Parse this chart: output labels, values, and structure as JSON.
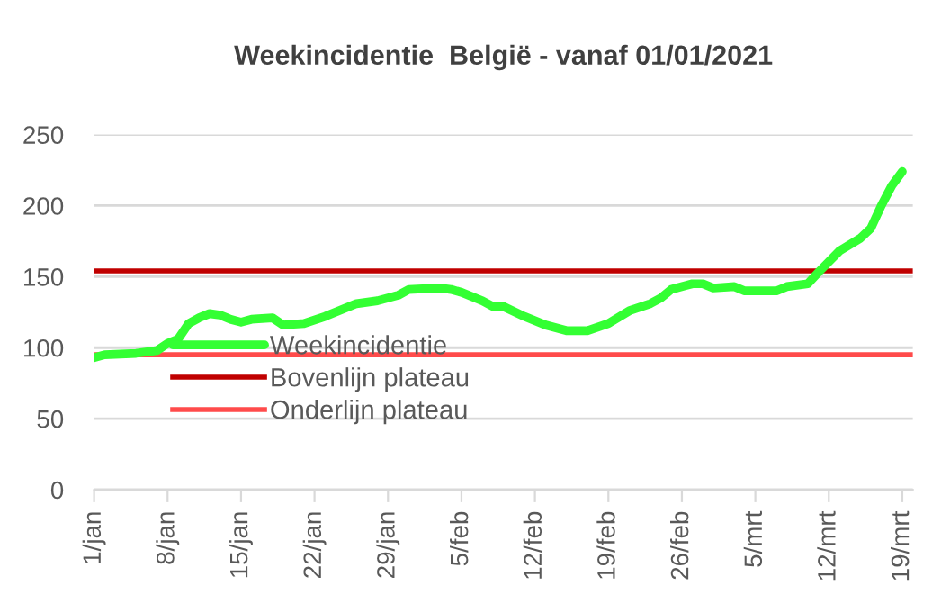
{
  "chart_data": {
    "type": "line",
    "title": "Weekincidentie  België - vanaf 01/01/2021",
    "series": [
      {
        "name": "Weekincidentie",
        "color": "#33ff33",
        "x": [
          "2021-01-01",
          "2021-01-02",
          "2021-01-05",
          "2021-01-07",
          "2021-01-08",
          "2021-01-09",
          "2021-01-10",
          "2021-01-11",
          "2021-01-12",
          "2021-01-13",
          "2021-01-14",
          "2021-01-15",
          "2021-01-16",
          "2021-01-18",
          "2021-01-19",
          "2021-01-21",
          "2021-01-23",
          "2021-01-25",
          "2021-01-26",
          "2021-01-28",
          "2021-01-30",
          "2021-01-31",
          "2021-02-03",
          "2021-02-04",
          "2021-02-05",
          "2021-02-07",
          "2021-02-08",
          "2021-02-09",
          "2021-02-11",
          "2021-02-13",
          "2021-02-15",
          "2021-02-17",
          "2021-02-19",
          "2021-02-21",
          "2021-02-23",
          "2021-02-24",
          "2021-02-25",
          "2021-02-27",
          "2021-02-28",
          "2021-03-01",
          "2021-03-03",
          "2021-03-04",
          "2021-03-07",
          "2021-03-08",
          "2021-03-10",
          "2021-03-11",
          "2021-03-13",
          "2021-03-15",
          "2021-03-16",
          "2021-03-17",
          "2021-03-18",
          "2021-03-19"
        ],
        "values": [
          93,
          95,
          96,
          98,
          103,
          106,
          117,
          121,
          124,
          123,
          120,
          118,
          120,
          121,
          116,
          117,
          122,
          128,
          131,
          133,
          137,
          141,
          142,
          141,
          139,
          133,
          129,
          129,
          122,
          116,
          112,
          112,
          117,
          126,
          131,
          135,
          141,
          145,
          145,
          142,
          143,
          140,
          140,
          143,
          145,
          153,
          168,
          177,
          184,
          200,
          214,
          224
        ]
      }
    ],
    "ref_lines": [
      {
        "axis": "y",
        "value": 154,
        "label": "Bovenlijn plateau",
        "color": "#c00000"
      },
      {
        "axis": "y",
        "value": 95,
        "label": "Onderlijn plateau",
        "color": "#ff4b4b"
      }
    ],
    "xlim": [
      "2021-01-01",
      "2021-03-20"
    ],
    "xticks": [
      {
        "value": "2021-01-01",
        "label": "1/jan"
      },
      {
        "value": "2021-01-08",
        "label": "8/jan"
      },
      {
        "value": "2021-01-15",
        "label": "15/jan"
      },
      {
        "value": "2021-01-22",
        "label": "22/jan"
      },
      {
        "value": "2021-01-29",
        "label": "29/jan"
      },
      {
        "value": "2021-02-05",
        "label": "5/feb"
      },
      {
        "value": "2021-02-12",
        "label": "12/feb"
      },
      {
        "value": "2021-02-19",
        "label": "19/feb"
      },
      {
        "value": "2021-02-26",
        "label": "26/feb"
      },
      {
        "value": "2021-03-05",
        "label": "5/mrt"
      },
      {
        "value": "2021-03-12",
        "label": "12/mrt"
      },
      {
        "value": "2021-03-19",
        "label": "19/mrt"
      }
    ],
    "ylim": [
      0,
      250
    ],
    "yticks": [
      0,
      50,
      100,
      150,
      200,
      250
    ],
    "grid": "y",
    "legend": "center left",
    "marker": "none",
    "line_style": "solid"
  }
}
